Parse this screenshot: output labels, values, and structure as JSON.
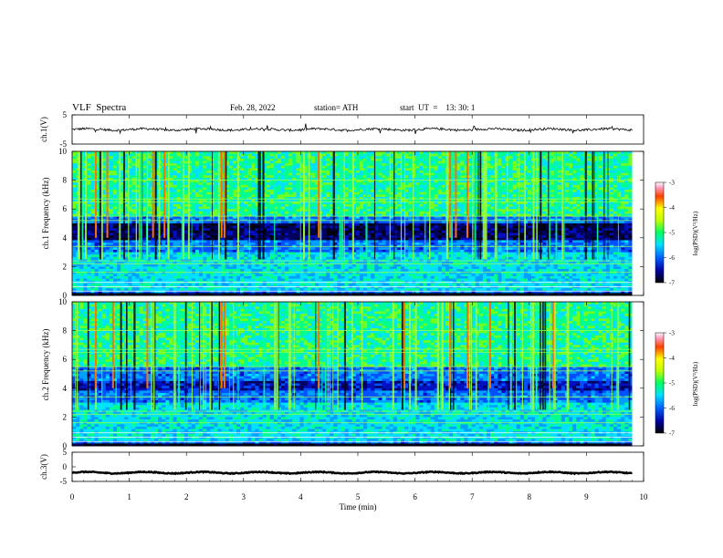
{
  "header": {
    "title": "VLF  Spectra",
    "date": "Feb. 28, 2022",
    "station": "station= ATH",
    "start": "start  UT  =    13: 30: 1"
  },
  "chart_data": [
    {
      "type": "line",
      "id": "ch1-voltage",
      "ylabel": "ch.1(V)",
      "ylim": [
        -5,
        5
      ],
      "yticks": [
        5,
        -5
      ],
      "xlim": [
        0,
        10
      ],
      "series": [
        {
          "values_note": "",
          "x_range": [
            0,
            9.8
          ],
          "baseline": 0.0,
          "noise": 0.4
        }
      ]
    },
    {
      "type": "heatmap",
      "id": "ch1-spectrogram",
      "ylabel": "ch.1 Frequency  (kHz)",
      "ylim": [
        0,
        10
      ],
      "yticks": [
        0,
        2,
        4,
        6,
        8,
        10
      ],
      "xlim": [
        0,
        10
      ],
      "x_range": [
        0,
        9.8
      ],
      "colorbar": {
        "label": "log(PSD)(V²/Hz)",
        "ticks": [
          -3,
          -4,
          -5,
          -6,
          -7
        ],
        "range": [
          -7,
          -3
        ]
      },
      "hot_times_min": [
        0.4,
        0.6,
        1.4,
        1.6,
        2.6,
        2.65,
        4.3,
        6.6,
        6.7,
        6.9
      ]
    },
    {
      "type": "heatmap",
      "id": "ch2-spectrogram",
      "ylabel": "ch.2 Frequency  (kHz)",
      "ylim": [
        0,
        10
      ],
      "yticks": [
        0,
        2,
        4,
        6,
        8,
        10
      ],
      "xlim": [
        0,
        10
      ],
      "x_range": [
        0,
        9.8
      ],
      "colorbar": {
        "label": "log(PSD)(V²/Hz)",
        "ticks": [
          -3,
          -4,
          -5,
          -6,
          -7
        ],
        "range": [
          -7,
          -3
        ]
      },
      "hot_times_min": [
        0.4,
        0.7,
        1.3,
        2.6,
        2.65,
        4.3,
        5.8,
        6.6,
        6.9,
        7.3,
        8.4
      ]
    },
    {
      "type": "line",
      "id": "ch3-voltage",
      "ylabel": "ch.3(V)",
      "ylim": [
        -5,
        5
      ],
      "yticks": [
        5,
        0,
        -5
      ],
      "xlim": [
        0,
        10
      ],
      "series": [
        {
          "x_range": [
            0,
            9.8
          ],
          "baseline": -2.0,
          "noise": 0.15
        }
      ]
    }
  ],
  "x_axis": {
    "label": "Time  (min)",
    "ticks": [
      "0",
      "1",
      "2",
      "3",
      "4",
      "5",
      "6",
      "7",
      "8",
      "9",
      "10"
    ]
  },
  "colors": {
    "frame": "#000000",
    "scale": [
      "#000020",
      "#0000a0",
      "#0040ff",
      "#00c0ff",
      "#00ff80",
      "#a0ff00",
      "#ffff00",
      "#ff8000",
      "#ff0000",
      "#ffffff"
    ]
  }
}
